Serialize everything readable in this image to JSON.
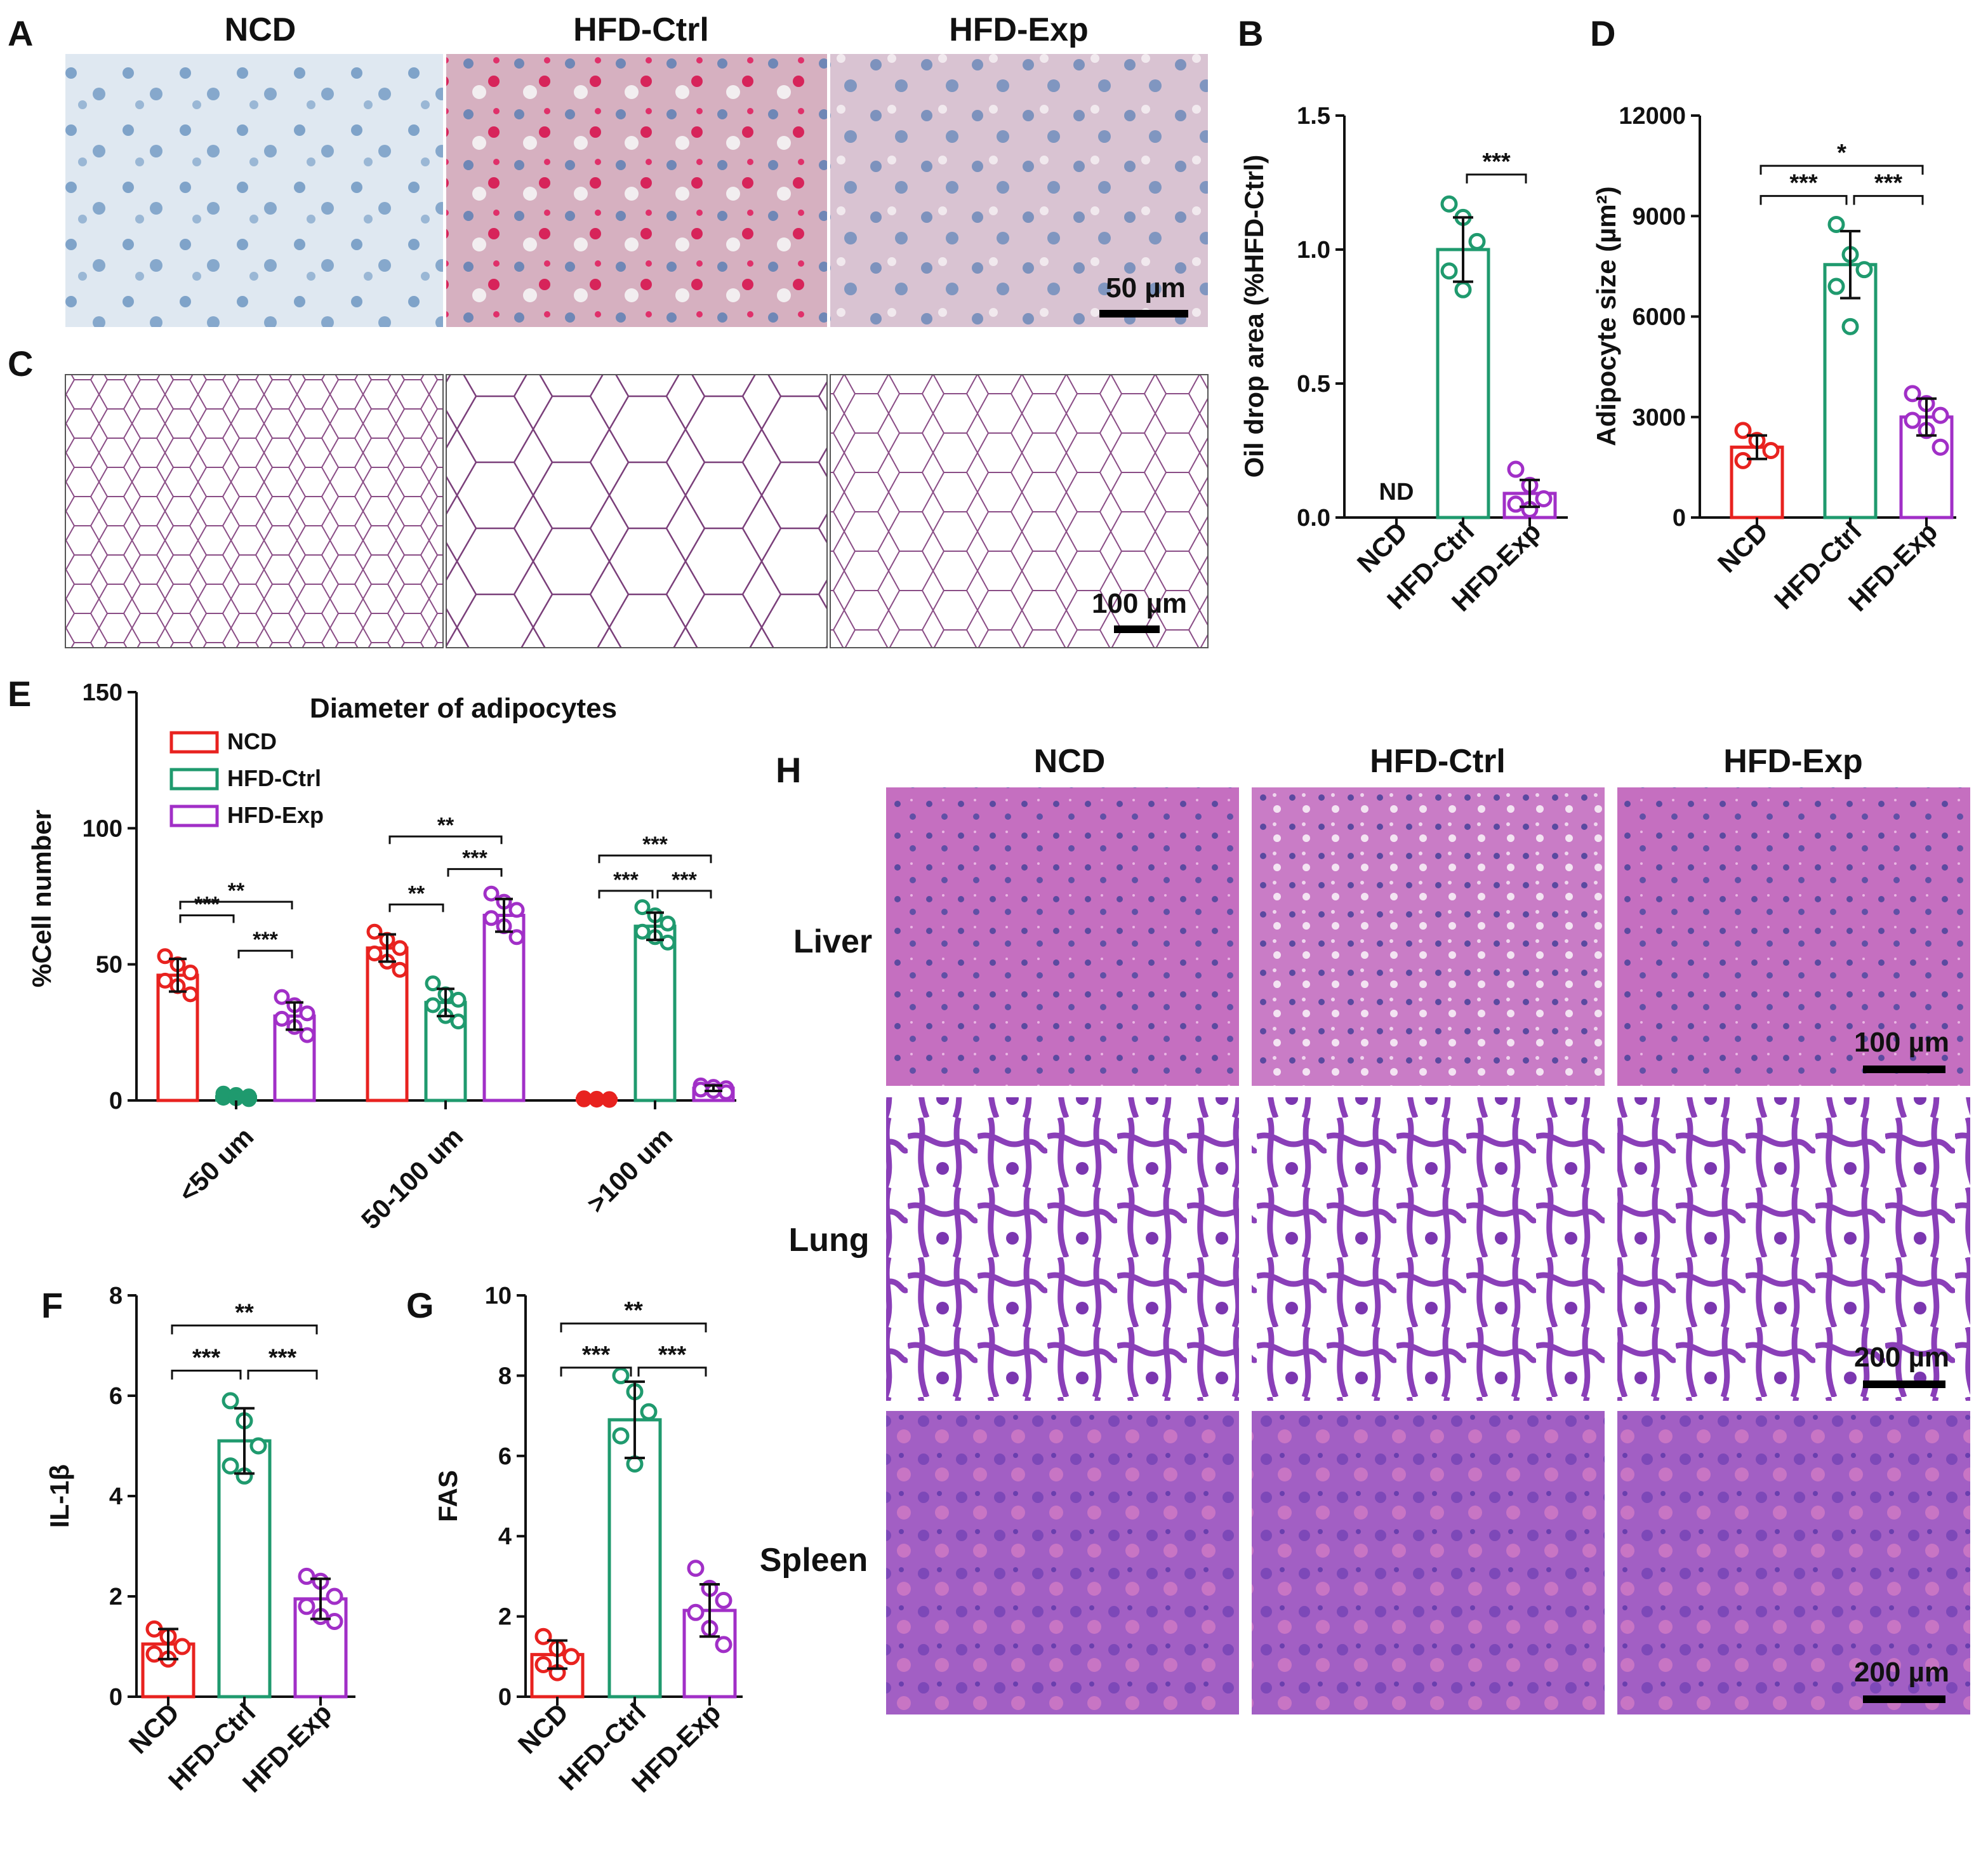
{
  "panel_labels": {
    "a": "A",
    "b": "B",
    "c": "C",
    "d": "D",
    "e": "E",
    "f": "F",
    "g": "G",
    "h": "H"
  },
  "groups": [
    "NCD",
    "HFD-Ctrl",
    "HFD-Exp"
  ],
  "colors": {
    "NCD": "#e8221f",
    "HFD-Ctrl": "#1f9a6e",
    "HFD-Exp": "#a12fc7"
  },
  "micrographs": {
    "a_scale": "50 µm",
    "c_scale": "100 µm",
    "h_rows": [
      "Liver",
      "Lung",
      "Spleen"
    ],
    "h_scales": [
      "100 µm",
      "200 µm",
      "200 µm"
    ]
  },
  "chart_data": [
    {
      "id": "B",
      "type": "bar",
      "categories": [
        "NCD",
        "HFD-Ctrl",
        "HFD-Exp"
      ],
      "values": [
        0,
        1.0,
        0.09
      ],
      "errors": [
        0,
        0.12,
        0.05
      ],
      "points": [
        [],
        [
          1.17,
          1.12,
          1.03,
          0.92,
          0.85
        ],
        [
          0.18,
          0.12,
          0.07,
          0.05,
          0.03
        ]
      ],
      "ylabel": "Oil drop area (%HFD-Ctrl)",
      "ylim": [
        0,
        1.5
      ],
      "yticks": [
        0.0,
        0.5,
        1.0,
        1.5
      ],
      "annotations": [
        {
          "text": "ND",
          "bar": 0
        }
      ],
      "sig": [
        {
          "from": 1,
          "to": 2,
          "label": "***",
          "level": 1.28
        }
      ]
    },
    {
      "id": "D",
      "type": "bar",
      "categories": [
        "NCD",
        "HFD-Ctrl",
        "HFD-Exp"
      ],
      "values": [
        2100,
        7550,
        3000
      ],
      "errors": [
        350,
        1000,
        550
      ],
      "points": [
        [
          2600,
          2300,
          2000,
          1700
        ],
        [
          8750,
          7850,
          7400,
          6900,
          5700
        ],
        [
          3700,
          3400,
          3050,
          2900,
          2600,
          2100
        ]
      ],
      "ylabel": "Adipocyte size (µm²)",
      "ylim": [
        0,
        12000
      ],
      "yticks": [
        0,
        3000,
        6000,
        9000,
        12000
      ],
      "sig": [
        {
          "from": 0,
          "to": 1,
          "label": "***",
          "level": 9600
        },
        {
          "from": 1,
          "to": 2,
          "label": "***",
          "level": 9600
        },
        {
          "from": 0,
          "to": 2,
          "label": "*",
          "level": 10500
        }
      ]
    },
    {
      "id": "E",
      "type": "bar",
      "title": "Diameter of adipocytes",
      "categories": [
        "<50 um",
        "50-100 um",
        ">100 um"
      ],
      "series": [
        {
          "name": "NCD",
          "values": [
            46,
            56,
            0.5
          ],
          "errors": [
            6,
            5,
            0.3
          ],
          "points": [
            [
              53,
              50,
              47,
              44,
              42,
              39
            ],
            [
              62,
              59,
              56,
              54,
              51,
              48
            ],
            [
              0.8,
              0.6,
              0.5,
              0.4,
              0.3,
              0.2
            ]
          ]
        },
        {
          "name": "HFD-Ctrl",
          "values": [
            1.5,
            36,
            64
          ],
          "errors": [
            0.8,
            5,
            5
          ],
          "points": [
            [
              2.5,
              2,
              1.5,
              1,
              0.8,
              0.5
            ],
            [
              43,
              39,
              37,
              35,
              31,
              29
            ],
            [
              71,
              68,
              65,
              62,
              60,
              58
            ]
          ]
        },
        {
          "name": "HFD-Exp",
          "values": [
            31,
            68,
            4.5
          ],
          "errors": [
            5,
            6,
            1
          ],
          "points": [
            [
              38,
              35,
              32,
              30,
              27,
              24
            ],
            [
              76,
              73,
              70,
              67,
              64,
              60
            ],
            [
              5.5,
              5,
              4.5,
              4,
              3.5,
              3
            ]
          ]
        }
      ],
      "ylabel": "%Cell number",
      "ylim": [
        0,
        150
      ],
      "yticks": [
        0,
        50,
        100,
        150
      ],
      "sig": [
        {
          "cat": 0,
          "from": 0,
          "to": 1,
          "label": "***",
          "level": 68
        },
        {
          "cat": 0,
          "from": 0,
          "to": 2,
          "label": "**",
          "level": 73
        },
        {
          "cat": 0,
          "from": 1,
          "to": 2,
          "label": "***",
          "level": 55
        },
        {
          "cat": 1,
          "from": 0,
          "to": 1,
          "label": "**",
          "level": 72
        },
        {
          "cat": 1,
          "from": 1,
          "to": 2,
          "label": "***",
          "level": 85
        },
        {
          "cat": 1,
          "from": 0,
          "to": 2,
          "label": "**",
          "level": 97
        },
        {
          "cat": 2,
          "from": 0,
          "to": 1,
          "label": "***",
          "level": 77
        },
        {
          "cat": 2,
          "from": 1,
          "to": 2,
          "label": "***",
          "level": 77
        },
        {
          "cat": 2,
          "from": 0,
          "to": 2,
          "label": "***",
          "level": 90
        }
      ]
    },
    {
      "id": "F",
      "type": "bar",
      "categories": [
        "NCD",
        "HFD-Ctrl",
        "HFD-Exp"
      ],
      "values": [
        1.05,
        5.1,
        1.95
      ],
      "errors": [
        0.3,
        0.65,
        0.4
      ],
      "points": [
        [
          1.35,
          1.2,
          1.0,
          0.85,
          0.75
        ],
        [
          5.9,
          5.5,
          5.0,
          4.6,
          4.4
        ],
        [
          2.4,
          2.3,
          2.0,
          1.8,
          1.6,
          1.5
        ]
      ],
      "ylabel": "IL-1β",
      "ylim": [
        0,
        8
      ],
      "yticks": [
        0,
        2,
        4,
        6,
        8
      ],
      "sig": [
        {
          "from": 0,
          "to": 1,
          "label": "***",
          "level": 6.5
        },
        {
          "from": 1,
          "to": 2,
          "label": "***",
          "level": 6.5
        },
        {
          "from": 0,
          "to": 2,
          "label": "**",
          "level": 7.4
        }
      ]
    },
    {
      "id": "G",
      "type": "bar",
      "categories": [
        "NCD",
        "HFD-Ctrl",
        "HFD-Exp"
      ],
      "values": [
        1.05,
        6.9,
        2.15
      ],
      "errors": [
        0.35,
        0.95,
        0.65
      ],
      "points": [
        [
          1.5,
          1.2,
          1.0,
          0.8,
          0.6
        ],
        [
          8.0,
          7.6,
          7.1,
          6.5,
          5.8
        ],
        [
          3.2,
          2.7,
          2.4,
          2.1,
          1.7,
          1.3
        ]
      ],
      "ylabel": "FAS",
      "ylim": [
        0,
        10
      ],
      "yticks": [
        0,
        2,
        4,
        6,
        8,
        10
      ],
      "sig": [
        {
          "from": 0,
          "to": 1,
          "label": "***",
          "level": 8.2
        },
        {
          "from": 1,
          "to": 2,
          "label": "***",
          "level": 8.2
        },
        {
          "from": 0,
          "to": 2,
          "label": "**",
          "level": 9.3
        }
      ]
    }
  ]
}
